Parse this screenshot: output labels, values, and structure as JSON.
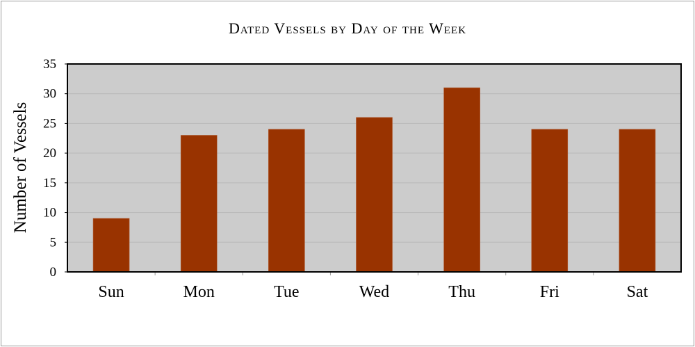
{
  "chart_data": {
    "type": "bar",
    "title": "Dated Vessels by Day of the Week",
    "xlabel": "",
    "ylabel": "Number of Vessels",
    "categories": [
      "Sun",
      "Mon",
      "Tue",
      "Wed",
      "Thu",
      "Fri",
      "Sat"
    ],
    "values": [
      9,
      23,
      24,
      26,
      31,
      24,
      24
    ],
    "ylim": [
      0,
      35
    ],
    "yticks": [
      "0",
      "5",
      "10",
      "15",
      "20",
      "25",
      "30",
      "35"
    ],
    "grid": true,
    "legend": "none",
    "colors": {
      "bar": "#993300",
      "plot_background": "#cccccc",
      "grid": "#b8b8b8"
    }
  }
}
